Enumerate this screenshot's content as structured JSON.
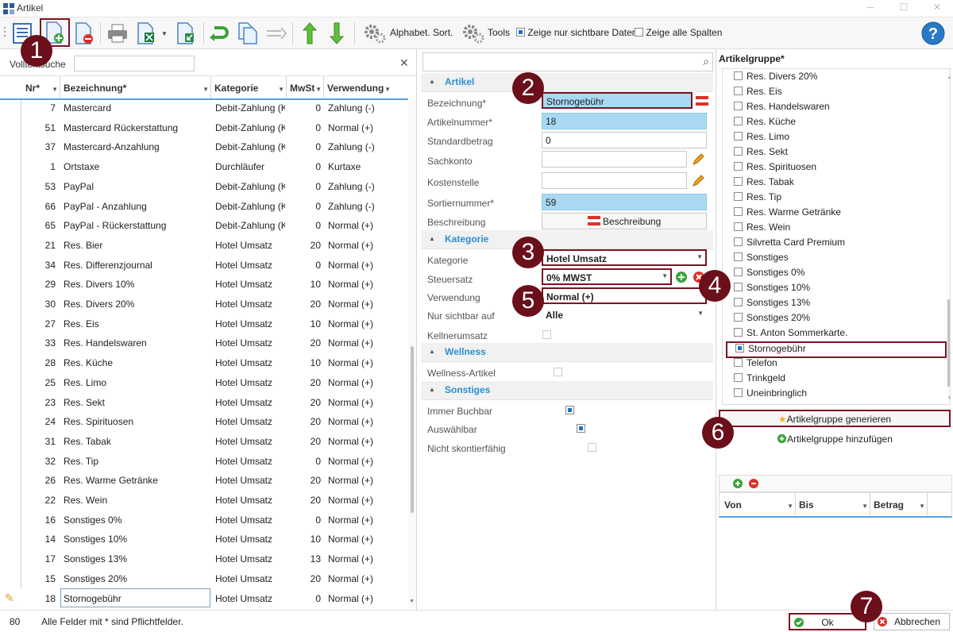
{
  "window": {
    "title": "Artikel"
  },
  "toolbar": {
    "alpha_sort": "Alphabet. Sort.",
    "tools": "Tools",
    "show_visible": "Zeige nur sichtbare Daten",
    "show_all_cols": "Zeige alle Spalten"
  },
  "left": {
    "search_label": "Volltextsuche",
    "search_value": "",
    "columns": [
      "Nr*",
      "Bezeichnung*",
      "Kategorie",
      "MwSt",
      "Verwendung"
    ],
    "rows": [
      {
        "nr": "7",
        "bez": "Mastercard",
        "kat": "Debit-Zahlung (K",
        "mw": "0",
        "ver": "Zahlung (-)"
      },
      {
        "nr": "51",
        "bez": "Mastercard Rückerstattung",
        "kat": "Debit-Zahlung (K",
        "mw": "0",
        "ver": "Normal (+)"
      },
      {
        "nr": "37",
        "bez": "Mastercard-Anzahlung",
        "kat": "Debit-Zahlung (K",
        "mw": "0",
        "ver": "Zahlung (-)"
      },
      {
        "nr": "1",
        "bez": "Ortstaxe",
        "kat": "Durchläufer",
        "mw": "0",
        "ver": "Kurtaxe"
      },
      {
        "nr": "53",
        "bez": "PayPal",
        "kat": "Debit-Zahlung (K",
        "mw": "0",
        "ver": "Zahlung (-)"
      },
      {
        "nr": "66",
        "bez": "PayPal - Anzahlung",
        "kat": "Debit-Zahlung (K",
        "mw": "0",
        "ver": "Zahlung (-)"
      },
      {
        "nr": "65",
        "bez": "PayPal - Rückerstattung",
        "kat": "Debit-Zahlung (K",
        "mw": "0",
        "ver": "Normal (+)"
      },
      {
        "nr": "21",
        "bez": "Res. Bier",
        "kat": "Hotel Umsatz",
        "mw": "20",
        "ver": "Normal (+)"
      },
      {
        "nr": "34",
        "bez": "Res. Differenzjournal",
        "kat": "Hotel Umsatz",
        "mw": "0",
        "ver": "Normal (+)"
      },
      {
        "nr": "29",
        "bez": "Res. Divers 10%",
        "kat": "Hotel Umsatz",
        "mw": "10",
        "ver": "Normal (+)"
      },
      {
        "nr": "30",
        "bez": "Res. Divers 20%",
        "kat": "Hotel Umsatz",
        "mw": "20",
        "ver": "Normal (+)"
      },
      {
        "nr": "27",
        "bez": "Res. Eis",
        "kat": "Hotel Umsatz",
        "mw": "10",
        "ver": "Normal (+)"
      },
      {
        "nr": "33",
        "bez": "Res. Handelswaren",
        "kat": "Hotel Umsatz",
        "mw": "20",
        "ver": "Normal (+)"
      },
      {
        "nr": "28",
        "bez": "Res. Küche",
        "kat": "Hotel Umsatz",
        "mw": "10",
        "ver": "Normal (+)"
      },
      {
        "nr": "25",
        "bez": "Res. Limo",
        "kat": "Hotel Umsatz",
        "mw": "20",
        "ver": "Normal (+)"
      },
      {
        "nr": "23",
        "bez": "Res. Sekt",
        "kat": "Hotel Umsatz",
        "mw": "20",
        "ver": "Normal (+)"
      },
      {
        "nr": "24",
        "bez": "Res. Spirituosen",
        "kat": "Hotel Umsatz",
        "mw": "20",
        "ver": "Normal (+)"
      },
      {
        "nr": "31",
        "bez": "Res. Tabak",
        "kat": "Hotel Umsatz",
        "mw": "20",
        "ver": "Normal (+)"
      },
      {
        "nr": "32",
        "bez": "Res. Tip",
        "kat": "Hotel Umsatz",
        "mw": "0",
        "ver": "Normal (+)"
      },
      {
        "nr": "26",
        "bez": "Res. Warme Getränke",
        "kat": "Hotel Umsatz",
        "mw": "20",
        "ver": "Normal (+)"
      },
      {
        "nr": "22",
        "bez": "Res. Wein",
        "kat": "Hotel Umsatz",
        "mw": "20",
        "ver": "Normal (+)"
      },
      {
        "nr": "16",
        "bez": "Sonstiges 0%",
        "kat": "Hotel Umsatz",
        "mw": "0",
        "ver": "Normal (+)"
      },
      {
        "nr": "14",
        "bez": "Sonstiges 10%",
        "kat": "Hotel Umsatz",
        "mw": "10",
        "ver": "Normal (+)"
      },
      {
        "nr": "17",
        "bez": "Sonstiges 13%",
        "kat": "Hotel Umsatz",
        "mw": "13",
        "ver": "Normal (+)"
      },
      {
        "nr": "15",
        "bez": "Sonstiges 20%",
        "kat": "Hotel Umsatz",
        "mw": "20",
        "ver": "Normal (+)"
      },
      {
        "nr": "18",
        "bez": "Stornogebühr",
        "kat": "Hotel Umsatz",
        "mw": "0",
        "ver": "Normal (+)"
      }
    ]
  },
  "mid": {
    "search_value": "",
    "sections": {
      "artikel": "Artikel",
      "kategorie": "Kategorie",
      "wellness": "Wellness",
      "sonstiges": "Sonstiges"
    },
    "labels": {
      "bezeichnung": "Bezeichnung*",
      "artikelnummer": "Artikelnummer*",
      "standardbetrag": "Standardbetrag",
      "sachkonto": "Sachkonto",
      "kostenstelle": "Kostenstelle",
      "sortiernummer": "Sortiernummer*",
      "beschreibung": "Beschreibung",
      "kategorie": "Kategorie",
      "steuersatz": "Steuersatz",
      "verwendung": "Verwendung",
      "nur_sichtbar": "Nur sichtbar auf",
      "kellnerumsatz": "Kellnerumsatz",
      "wellness_artikel": "Wellness-Artikel",
      "immer_buchbar": "Immer Buchbar",
      "auswaehlbar": "Auswählbar",
      "nicht_skonto": "Nicht skontierfähig"
    },
    "values": {
      "bezeichnung": "Stornogebühr",
      "artikelnummer": "18",
      "standardbetrag": "0",
      "sachkonto": "",
      "kostenstelle": "",
      "sortiernummer": "59",
      "beschreibung_btn": "Beschreibung",
      "kategorie": "Hotel Umsatz",
      "steuersatz": "0% MWST",
      "verwendung": "Normal (+)",
      "nur_sichtbar": "Alle"
    }
  },
  "right": {
    "title": "Artikelgruppe*",
    "groups": [
      "Res. Divers 20%",
      "Res. Eis",
      "Res. Handelswaren",
      "Res. Küche",
      "Res. Limo",
      "Res. Sekt",
      "Res. Spirituosen",
      "Res. Tabak",
      "Res. Tip",
      "Res. Warme Getränke",
      "Res. Wein",
      "Silvretta Card Premium",
      "Sonstiges",
      "Sonstiges 0%",
      "Sonstiges 10%",
      "Sonstiges 13%",
      "Sonstiges 20%",
      "St. Anton Sommerkarte.",
      "Stornogebühr",
      "Telefon",
      "Trinkgeld",
      "Uneinbringlich"
    ],
    "checked_group": "Stornogebühr",
    "generate_btn": "Artikelgruppe generieren",
    "add_btn": "Artikelgruppe hinzufügen",
    "price_columns": [
      "Von",
      "Bis",
      "Betrag"
    ]
  },
  "status": {
    "count": "80",
    "hint": "Alle Felder mit * sind Pflichtfelder.",
    "ok": "Ok",
    "cancel": "Abbrechen"
  },
  "badges": [
    "1",
    "2",
    "3",
    "4",
    "5",
    "6",
    "7"
  ],
  "colors": {
    "accent": "#2a8fd0",
    "required_field": "#a9d9f2",
    "badge": "#6b0f1a"
  }
}
